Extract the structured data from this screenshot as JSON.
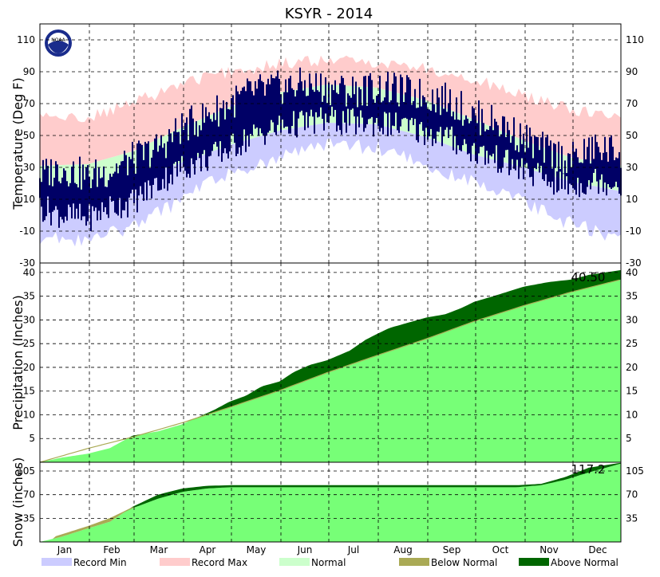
{
  "chart_data": {
    "title": "KSYR - 2014",
    "months": [
      "Jan",
      "Feb",
      "Mar",
      "Apr",
      "May",
      "Jun",
      "Jul",
      "Aug",
      "Sep",
      "Oct",
      "Nov",
      "Dec"
    ],
    "month_days": [
      31,
      28,
      31,
      30,
      31,
      30,
      31,
      31,
      30,
      31,
      30,
      31
    ],
    "logo_text": "NOAA",
    "panels": {
      "temperature": {
        "type": "area",
        "ylabel": "Temperature (Deg F)",
        "ylim": [
          -30,
          120
        ],
        "ticks": [
          110,
          90,
          70,
          50,
          30,
          10,
          -10,
          -30
        ],
        "tick_labels": [
          "110",
          "90",
          "70",
          "50",
          "30",
          "10",
          "-10",
          "-30"
        ],
        "record_max": [
          [
            1,
            62
          ],
          [
            31,
            61
          ],
          [
            59,
            70
          ],
          [
            90,
            83
          ],
          [
            120,
            90
          ],
          [
            151,
            95
          ],
          [
            181,
            97
          ],
          [
            212,
            96
          ],
          [
            243,
            92
          ],
          [
            273,
            85
          ],
          [
            304,
            75
          ],
          [
            334,
            66
          ],
          [
            365,
            62
          ]
        ],
        "normal_high": [
          [
            1,
            31
          ],
          [
            31,
            32
          ],
          [
            59,
            40
          ],
          [
            90,
            55
          ],
          [
            120,
            68
          ],
          [
            151,
            77
          ],
          [
            181,
            82
          ],
          [
            212,
            80
          ],
          [
            243,
            72
          ],
          [
            273,
            60
          ],
          [
            304,
            47
          ],
          [
            334,
            36
          ],
          [
            365,
            31
          ]
        ],
        "normal_low": [
          [
            1,
            15
          ],
          [
            31,
            15
          ],
          [
            59,
            22
          ],
          [
            90,
            33
          ],
          [
            120,
            44
          ],
          [
            151,
            53
          ],
          [
            181,
            58
          ],
          [
            212,
            57
          ],
          [
            243,
            49
          ],
          [
            273,
            38
          ],
          [
            304,
            30
          ],
          [
            334,
            21
          ],
          [
            365,
            15
          ]
        ],
        "record_min": [
          [
            1,
            -14
          ],
          [
            31,
            -16
          ],
          [
            59,
            -8
          ],
          [
            90,
            10
          ],
          [
            120,
            27
          ],
          [
            151,
            36
          ],
          [
            181,
            44
          ],
          [
            212,
            42
          ],
          [
            243,
            31
          ],
          [
            273,
            20
          ],
          [
            304,
            8
          ],
          [
            334,
            -6
          ],
          [
            365,
            -14
          ]
        ],
        "observed_high_approx": [
          [
            1,
            25
          ],
          [
            15,
            30
          ],
          [
            31,
            24
          ],
          [
            45,
            28
          ],
          [
            59,
            35
          ],
          [
            75,
            42
          ],
          [
            90,
            55
          ],
          [
            105,
            62
          ],
          [
            120,
            70
          ],
          [
            135,
            78
          ],
          [
            151,
            80
          ],
          [
            166,
            82
          ],
          [
            181,
            80
          ],
          [
            196,
            78
          ],
          [
            212,
            80
          ],
          [
            227,
            78
          ],
          [
            243,
            75
          ],
          [
            258,
            72
          ],
          [
            273,
            62
          ],
          [
            288,
            58
          ],
          [
            304,
            48
          ],
          [
            319,
            40
          ],
          [
            334,
            35
          ],
          [
            349,
            42
          ],
          [
            365,
            40
          ]
        ],
        "observed_low_approx": [
          [
            1,
            5
          ],
          [
            15,
            0
          ],
          [
            31,
            -2
          ],
          [
            45,
            5
          ],
          [
            59,
            8
          ],
          [
            75,
            20
          ],
          [
            90,
            30
          ],
          [
            105,
            35
          ],
          [
            120,
            42
          ],
          [
            135,
            50
          ],
          [
            151,
            55
          ],
          [
            166,
            58
          ],
          [
            181,
            60
          ],
          [
            196,
            58
          ],
          [
            212,
            58
          ],
          [
            227,
            56
          ],
          [
            243,
            52
          ],
          [
            258,
            48
          ],
          [
            273,
            40
          ],
          [
            288,
            35
          ],
          [
            304,
            28
          ],
          [
            319,
            22
          ],
          [
            334,
            18
          ],
          [
            349,
            22
          ],
          [
            365,
            20
          ]
        ]
      },
      "precipitation": {
        "type": "area",
        "ylabel": "Precipitation (Inches)",
        "ylim": [
          0,
          42
        ],
        "ticks": [
          40,
          35,
          30,
          25,
          20,
          15,
          10,
          5
        ],
        "tick_labels": [
          "40",
          "35",
          "30",
          "25",
          "20",
          "15",
          "10",
          "5"
        ],
        "total_label": "40.50",
        "normal": [
          [
            1,
            0
          ],
          [
            31,
            2.9
          ],
          [
            59,
            5.3
          ],
          [
            90,
            8.3
          ],
          [
            120,
            11.6
          ],
          [
            151,
            15.1
          ],
          [
            181,
            18.9
          ],
          [
            212,
            22.5
          ],
          [
            243,
            26.0
          ],
          [
            273,
            29.7
          ],
          [
            304,
            33.0
          ],
          [
            334,
            35.9
          ],
          [
            365,
            38.5
          ]
        ],
        "observed": [
          [
            1,
            0
          ],
          [
            15,
            1.0
          ],
          [
            31,
            1.8
          ],
          [
            45,
            3.0
          ],
          [
            59,
            5.6
          ],
          [
            75,
            6.5
          ],
          [
            90,
            8.0
          ],
          [
            100,
            9.5
          ],
          [
            110,
            11.0
          ],
          [
            120,
            12.8
          ],
          [
            130,
            14.0
          ],
          [
            140,
            16.0
          ],
          [
            151,
            17.0
          ],
          [
            160,
            19.0
          ],
          [
            170,
            20.5
          ],
          [
            181,
            21.5
          ],
          [
            195,
            23.5
          ],
          [
            205,
            25.8
          ],
          [
            212,
            27.0
          ],
          [
            220,
            28.3
          ],
          [
            243,
            30.5
          ],
          [
            255,
            31.2
          ],
          [
            265,
            32.5
          ],
          [
            273,
            33.8
          ],
          [
            285,
            35.0
          ],
          [
            304,
            37.0
          ],
          [
            320,
            38.0
          ],
          [
            334,
            38.5
          ],
          [
            345,
            39.5
          ],
          [
            365,
            40.5
          ]
        ]
      },
      "snow": {
        "type": "area",
        "ylabel": "Snow (inches)",
        "ylim": [
          0,
          118
        ],
        "ticks": [
          105,
          70,
          35
        ],
        "tick_labels": [
          "105",
          "70",
          "35"
        ],
        "total_label": "117.2",
        "normal": [
          [
            1,
            0
          ],
          [
            15,
            10
          ],
          [
            31,
            22
          ],
          [
            45,
            34
          ],
          [
            59,
            50
          ],
          [
            75,
            64
          ],
          [
            90,
            74
          ],
          [
            105,
            79
          ],
          [
            120,
            81
          ],
          [
            150,
            81
          ],
          [
            210,
            81
          ],
          [
            270,
            81
          ],
          [
            300,
            81
          ],
          [
            315,
            84
          ],
          [
            330,
            92
          ],
          [
            345,
            103
          ],
          [
            365,
            116
          ]
        ],
        "observed": [
          [
            1,
            0
          ],
          [
            15,
            8
          ],
          [
            31,
            20
          ],
          [
            45,
            30
          ],
          [
            59,
            52
          ],
          [
            75,
            70
          ],
          [
            90,
            79
          ],
          [
            105,
            83
          ],
          [
            120,
            84
          ],
          [
            150,
            84
          ],
          [
            210,
            84
          ],
          [
            270,
            84
          ],
          [
            300,
            84
          ],
          [
            315,
            86
          ],
          [
            330,
            96
          ],
          [
            345,
            110
          ],
          [
            365,
            117.2
          ]
        ]
      }
    },
    "legend": [
      {
        "label": "Record Min",
        "color": "#ccccff"
      },
      {
        "label": "Record Max",
        "color": "#ffcccc"
      },
      {
        "label": "Normal",
        "color": "#ccffcc"
      },
      {
        "label": "Below Normal",
        "color": "#aaaa55"
      },
      {
        "label": "Above Normal",
        "color": "#006600"
      }
    ],
    "colors": {
      "record_min": "#ccccff",
      "record_max": "#ffcccc",
      "normal_band": "#ccffcc",
      "observed_temp": "#000066",
      "normal_fill": "#77ff77",
      "above_normal": "#006600",
      "below_normal": "#aaaa55",
      "frame": "#000000",
      "grid": "#000000"
    }
  }
}
